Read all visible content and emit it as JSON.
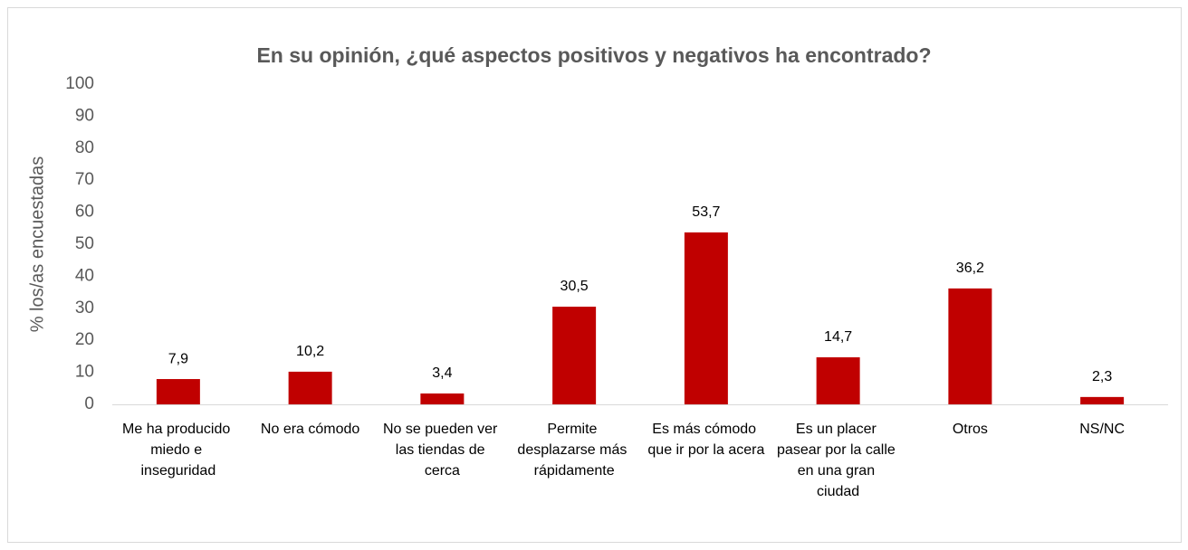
{
  "chart_data": {
    "type": "bar",
    "title": "En su opinión, ¿qué aspectos positivos y negativos ha encontrado?",
    "y_label": "% los/as encuestadas",
    "categories": [
      "Me ha producido miedo e inseguridad",
      "No era cómodo",
      "No se pueden ver las tiendas de cerca",
      "Permite desplazarse más rápidamente",
      "Es más cómodo que ir por la acera",
      "Es un placer pasear por la calle en una gran ciudad",
      "Otros",
      "NS/NC"
    ],
    "values": [
      7.9,
      10.2,
      3.4,
      30.5,
      53.7,
      14.7,
      36.2,
      2.3
    ],
    "value_labels": [
      "7,9",
      "10,2",
      "3,4",
      "30,5",
      "53,7",
      "14,7",
      "36,2",
      "2,3"
    ],
    "color": "#c00000",
    "ylim": [
      0,
      100
    ],
    "yticks": [
      0,
      10,
      20,
      30,
      40,
      50,
      60,
      70,
      80,
      90,
      100
    ],
    "grid": false
  }
}
